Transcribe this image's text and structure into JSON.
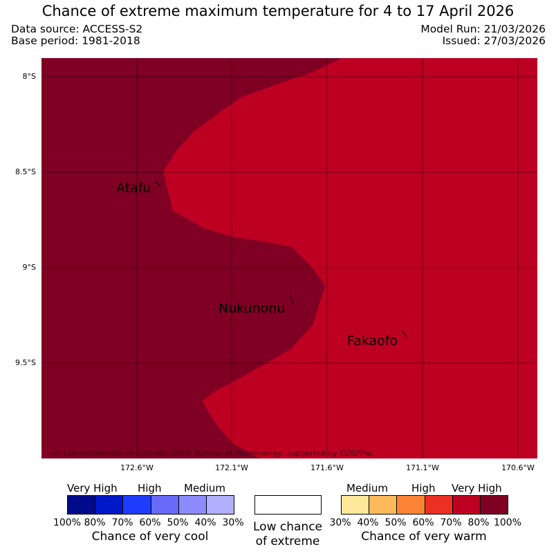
{
  "header": {
    "title": "Chance of extreme maximum temperature for 4 to 17 April 2026",
    "data_source": "Data source: ACCESS-S2",
    "base_period": "Base period: 1981-2018",
    "model_run": "Model Run: 21/03/2026",
    "issued": "Issued: 27/03/2026"
  },
  "map": {
    "lat_labels": [
      "8°S",
      "8.5°S",
      "9°S",
      "9.5°S"
    ],
    "lon_labels": [
      "172.6°W",
      "172.1°W",
      "171.6°W",
      "171.1°W",
      "170.6°W"
    ],
    "places": [
      "Atafu",
      "Nukunonu",
      "Fakaofo"
    ],
    "region_colors": {
      "very_high_warm": "#7f0022",
      "high_warm": "#bd0022"
    },
    "copyright": "© Commonwealth of Australia 2026, Bureau of Meteorology, supported by COSPPac"
  },
  "legend": {
    "cool": {
      "categories": [
        "Very High",
        "High",
        "Medium"
      ],
      "colors": [
        "#000b8c",
        "#0019c8",
        "#1f3cfe",
        "#6a6af9",
        "#8c8cff",
        "#b0b0ff"
      ],
      "ticks": [
        "100%",
        "80%",
        "70%",
        "60%",
        "50%",
        "40%",
        "30%"
      ],
      "title": "Chance of very cool"
    },
    "low": {
      "line1": "Low chance",
      "line2": "of extreme",
      "color": "#ffffff"
    },
    "warm": {
      "categories": [
        "Medium",
        "High",
        "Very High"
      ],
      "colors": [
        "#fee99b",
        "#fdb95a",
        "#fd8434",
        "#ec3023",
        "#bd0022",
        "#7f0022"
      ],
      "ticks": [
        "30%",
        "40%",
        "50%",
        "60%",
        "70%",
        "80%",
        "100%"
      ],
      "title": "Chance of very warm"
    }
  }
}
